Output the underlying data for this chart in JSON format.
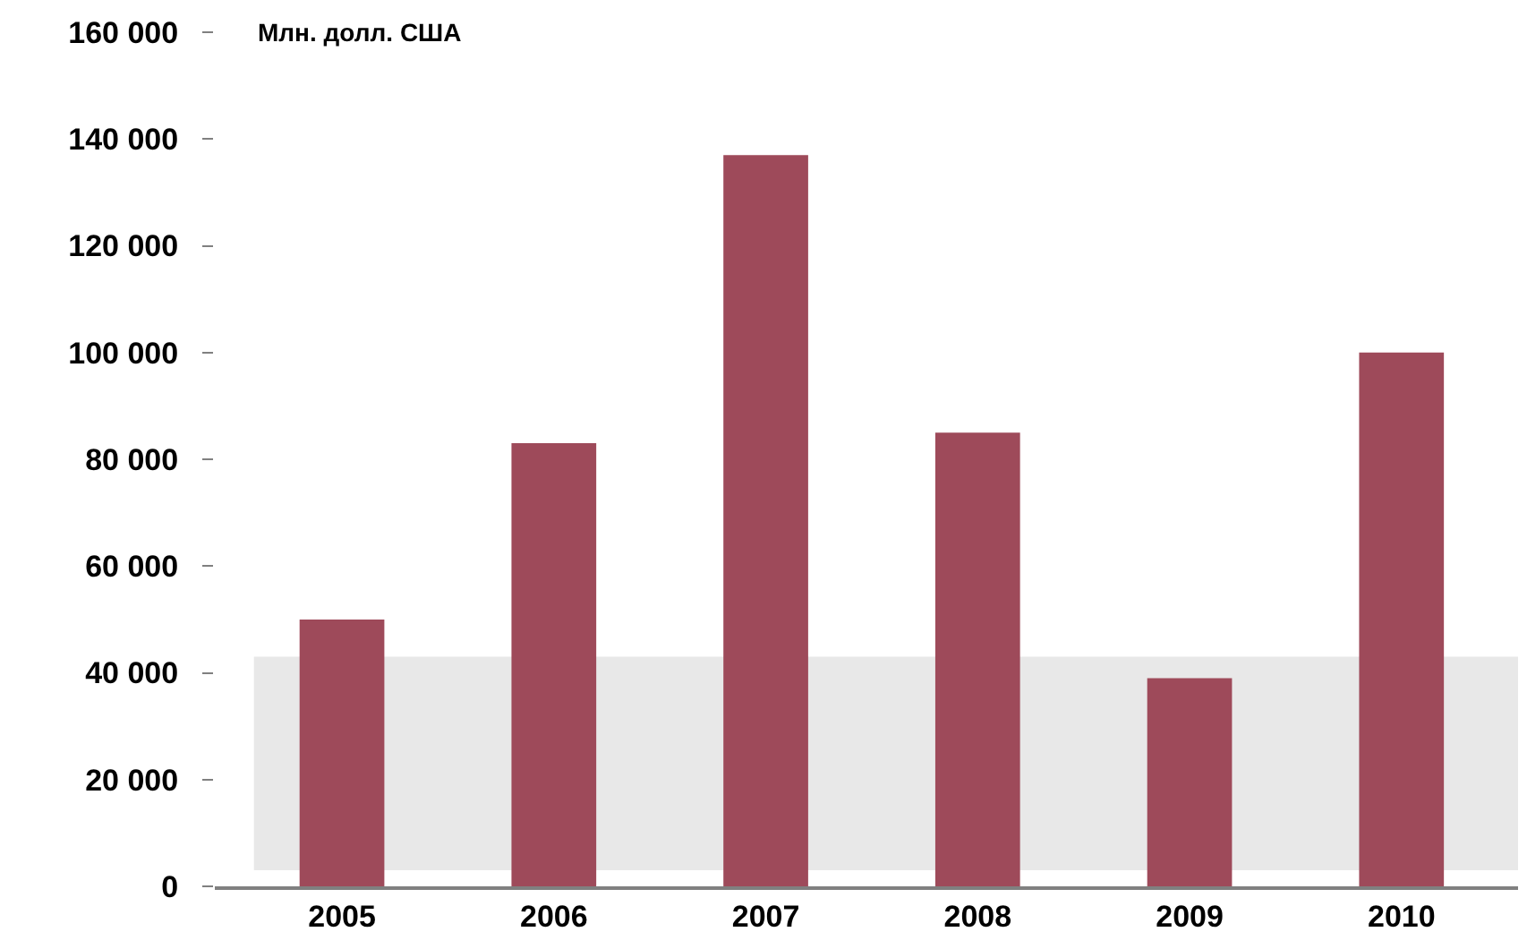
{
  "chart_data": {
    "type": "bar",
    "ylabel": "Млн. долл. США",
    "categories": [
      "2005",
      "2006",
      "2007",
      "2008",
      "2009",
      "2010"
    ],
    "values": [
      50000,
      83000,
      137000,
      85000,
      39000,
      100000
    ],
    "color": "#9e4a5a",
    "ylim": [
      0,
      160000
    ],
    "yticks": [
      {
        "value": 0,
        "label": "0"
      },
      {
        "value": 20000,
        "label": "20 000"
      },
      {
        "value": 40000,
        "label": "40 000"
      },
      {
        "value": 60000,
        "label": "60 000"
      },
      {
        "value": 80000,
        "label": "80 000"
      },
      {
        "value": 100000,
        "label": "100 000"
      },
      {
        "value": 120000,
        "label": "120 000"
      },
      {
        "value": 140000,
        "label": "140 000"
      },
      {
        "value": 160000,
        "label": "160 000"
      }
    ],
    "bands": [
      {
        "axis": "y",
        "from": 3000,
        "to": 43000,
        "color": "#e8e8e8"
      }
    ],
    "grid": false
  }
}
